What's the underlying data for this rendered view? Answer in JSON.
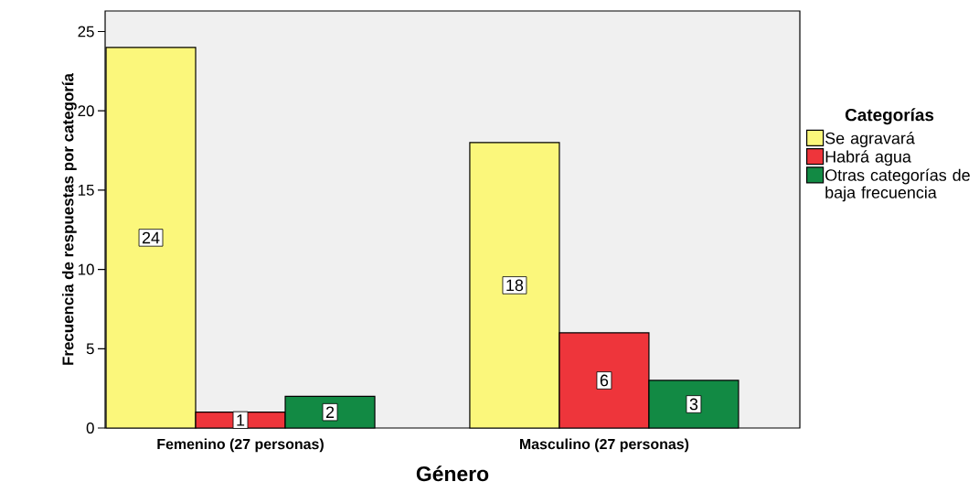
{
  "chart_data": {
    "type": "bar",
    "xlabel": "Género",
    "ylabel": "Frecuencia de respuestas por categoría",
    "legend_title": "Categorías",
    "categories": [
      "Femenino (27 personas)",
      "Masculino (27 personas)"
    ],
    "series": [
      {
        "name": "Se agravará",
        "color": "#fbf77b",
        "values": [
          24,
          18
        ]
      },
      {
        "name": "Habrá agua",
        "color": "#ee353b",
        "values": [
          1,
          6
        ]
      },
      {
        "name": "Otras categorías de baja frecuencia",
        "color": "#128a44",
        "values": [
          2,
          3
        ]
      }
    ],
    "ylim": [
      0,
      26.3
    ],
    "yticks": [
      0,
      5,
      10,
      15,
      20,
      25
    ],
    "grid": false,
    "legend": "right",
    "data_labels": true
  }
}
